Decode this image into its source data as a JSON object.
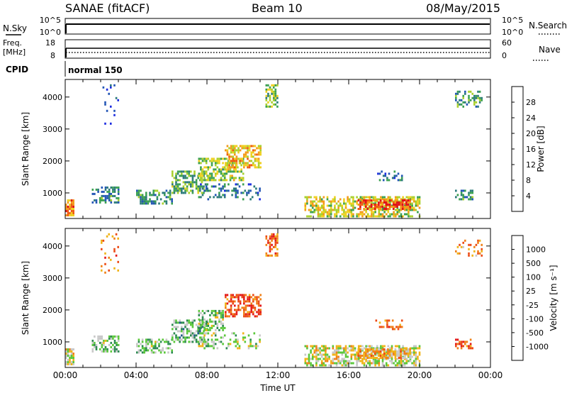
{
  "header": {
    "title": "SANAE (fitACF)",
    "beam": "Beam 10",
    "date": "08/May/2015"
  },
  "status_panels": {
    "nsky": {
      "label": "N.Sky",
      "ticks": [
        "10^5",
        "10^0"
      ]
    },
    "nsearch": {
      "label": "N.Search",
      "ticks": [
        "10^5",
        "10^0"
      ]
    },
    "freq": {
      "label_line1": "Freq.",
      "label_line2": "[MHz]",
      "ticks": [
        "18",
        "8"
      ]
    },
    "nave": {
      "label": "Nave",
      "ticks": [
        "60",
        "0"
      ]
    },
    "cpid": {
      "label": "CPID",
      "value": "normal 150"
    }
  },
  "chart_data": [
    {
      "type": "heatmap",
      "panel": "power",
      "xlabel": "Time UT",
      "ylabel": "Slant Range [km]",
      "y_ticks": [
        "1000",
        "2000",
        "3000",
        "4000"
      ],
      "ylim": [
        200,
        4550
      ],
      "xlim": [
        0,
        24
      ],
      "colorbar": {
        "label": "Power [dB]",
        "ticks": [
          "4",
          "8",
          "12",
          "16",
          "20",
          "24",
          "28"
        ],
        "range": [
          0,
          32
        ],
        "colors": [
          "#1b2be0",
          "#2255b5",
          "#2b7a7a",
          "#3aa050",
          "#a8d02c",
          "#f0d020",
          "#f49a1a",
          "#ee5a12",
          "#e0101a"
        ]
      },
      "regions": [
        {
          "t": [
            2.0,
            3.0
          ],
          "r": [
            3200,
            4400
          ],
          "level": 0.15,
          "density": 0.12
        },
        {
          "t": [
            0.0,
            0.5
          ],
          "r": [
            300,
            800
          ],
          "level": 0.75,
          "density": 0.9
        },
        {
          "t": [
            1.5,
            3.0
          ],
          "r": [
            700,
            1200
          ],
          "level": 0.3,
          "density": 0.5
        },
        {
          "t": [
            4.0,
            6.0
          ],
          "r": [
            700,
            1100
          ],
          "level": 0.3,
          "density": 0.5
        },
        {
          "t": [
            6.0,
            8.0
          ],
          "r": [
            1000,
            1700
          ],
          "level": 0.4,
          "density": 0.55
        },
        {
          "t": [
            7.5,
            10.0
          ],
          "r": [
            1400,
            2100
          ],
          "level": 0.5,
          "density": 0.55
        },
        {
          "t": [
            9.0,
            11.0
          ],
          "r": [
            1800,
            2500
          ],
          "level": 0.65,
          "density": 0.6
        },
        {
          "t": [
            7.5,
            11.0
          ],
          "r": [
            800,
            1300
          ],
          "level": 0.25,
          "density": 0.3
        },
        {
          "t": [
            11.3,
            12.0
          ],
          "r": [
            3700,
            4400
          ],
          "level": 0.45,
          "density": 0.6
        },
        {
          "t": [
            13.5,
            20.0
          ],
          "r": [
            300,
            900
          ],
          "level": 0.55,
          "density": 0.6
        },
        {
          "t": [
            16.5,
            19.5
          ],
          "r": [
            500,
            800
          ],
          "level": 0.85,
          "density": 0.7
        },
        {
          "t": [
            17.5,
            19.0
          ],
          "r": [
            1400,
            1700
          ],
          "level": 0.2,
          "density": 0.3
        },
        {
          "t": [
            22.0,
            23.0
          ],
          "r": [
            800,
            1100
          ],
          "level": 0.3,
          "density": 0.5
        },
        {
          "t": [
            22.0,
            23.5
          ],
          "r": [
            3700,
            4200
          ],
          "level": 0.35,
          "density": 0.35
        }
      ]
    },
    {
      "type": "heatmap",
      "panel": "velocity",
      "xlabel": "Time UT",
      "ylabel": "Slant Range [km]",
      "x_ticks": [
        "00:00",
        "04:00",
        "08:00",
        "12:00",
        "16:00",
        "20:00",
        "00:00"
      ],
      "y_ticks": [
        "1000",
        "2000",
        "3000",
        "4000"
      ],
      "ylim": [
        200,
        4550
      ],
      "xlim": [
        0,
        24
      ],
      "colorbar": {
        "label": "Velocity [m s⁻¹]",
        "ticks": [
          "1000",
          "500",
          "100",
          "25",
          "-25",
          "-100",
          "-500",
          "-1000"
        ],
        "colors": [
          "#2231d0",
          "#1f5a8a",
          "#2c8a50",
          "#5ac83a",
          "#c8c8c8",
          "#f0b418",
          "#f08018",
          "#ec4a14",
          "#e41a1a"
        ]
      },
      "regions": [
        {
          "t": [
            2.0,
            3.0
          ],
          "r": [
            3200,
            4400
          ],
          "level": 0.75,
          "density": 0.12
        },
        {
          "t": [
            0.0,
            0.5
          ],
          "r": [
            300,
            800
          ],
          "level": 0.55,
          "density": 0.9
        },
        {
          "t": [
            1.5,
            3.0
          ],
          "r": [
            700,
            1200
          ],
          "level": 0.4,
          "density": 0.5
        },
        {
          "t": [
            4.0,
            6.0
          ],
          "r": [
            700,
            1100
          ],
          "level": 0.4,
          "density": 0.5
        },
        {
          "t": [
            6.0,
            8.0
          ],
          "r": [
            1000,
            1700
          ],
          "level": 0.38,
          "density": 0.55
        },
        {
          "t": [
            7.5,
            9.0
          ],
          "r": [
            1400,
            2000
          ],
          "level": 0.4,
          "density": 0.55
        },
        {
          "t": [
            9.0,
            11.0
          ],
          "r": [
            1800,
            2500
          ],
          "level": 0.82,
          "density": 0.6
        },
        {
          "t": [
            7.5,
            11.0
          ],
          "r": [
            800,
            1300
          ],
          "level": 0.45,
          "density": 0.3
        },
        {
          "t": [
            11.3,
            12.0
          ],
          "r": [
            3700,
            4400
          ],
          "level": 0.8,
          "density": 0.6
        },
        {
          "t": [
            13.5,
            20.0
          ],
          "r": [
            300,
            900
          ],
          "level": 0.52,
          "density": 0.6
        },
        {
          "t": [
            16.5,
            19.5
          ],
          "r": [
            500,
            800
          ],
          "level": 0.65,
          "density": 0.7
        },
        {
          "t": [
            17.5,
            19.0
          ],
          "r": [
            1400,
            1700
          ],
          "level": 0.75,
          "density": 0.3
        },
        {
          "t": [
            22.0,
            23.0
          ],
          "r": [
            800,
            1100
          ],
          "level": 0.8,
          "density": 0.5
        },
        {
          "t": [
            22.0,
            23.5
          ],
          "r": [
            3700,
            4200
          ],
          "level": 0.7,
          "density": 0.35
        }
      ]
    }
  ]
}
